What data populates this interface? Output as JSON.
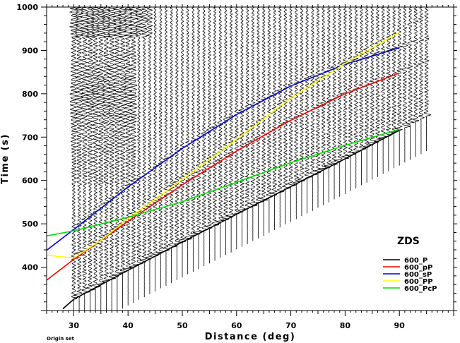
{
  "chart_data": {
    "type": "line",
    "title": "",
    "xlabel": "Distance (deg)",
    "ylabel": "Time (s)",
    "xlim": [
      25,
      100
    ],
    "ylim": [
      300,
      1000
    ],
    "xticks": [
      "30",
      "40",
      "50",
      "60",
      "70",
      "80",
      "90"
    ],
    "yticks": [
      "400",
      "500",
      "600",
      "700",
      "800",
      "900",
      "1000"
    ],
    "legend_title": "ZDS",
    "legend_position": "lower-right",
    "footnote": "Origin set",
    "grid": false,
    "traces": {
      "description_free": true,
      "distances_start": 30,
      "distances_end": 95,
      "distance_step": 1,
      "color": "#000000"
    },
    "series": [
      {
        "name": "600_P",
        "color": "#000000",
        "x": [
          28,
          30,
          40,
          50,
          60,
          70,
          80,
          90
        ],
        "y": [
          304,
          326,
          393,
          458,
          522,
          586,
          650,
          716
        ]
      },
      {
        "name": "600_pP",
        "color": "#ff0000",
        "x": [
          25,
          30,
          40,
          50,
          60,
          70,
          80,
          90
        ],
        "y": [
          370,
          418,
          506,
          590,
          668,
          739,
          800,
          848
        ]
      },
      {
        "name": "600_sP",
        "color": "#0000cc",
        "x": [
          25,
          30,
          40,
          50,
          60,
          70,
          80,
          90
        ],
        "y": [
          439,
          487,
          585,
          674,
          752,
          818,
          868,
          906
        ]
      },
      {
        "name": "600_PP",
        "color": "#ffff00",
        "x": [
          25,
          30,
          35,
          40,
          50,
          60,
          70,
          80,
          90
        ],
        "y": [
          428,
          421,
          462,
          512,
          602,
          695,
          790,
          870,
          942
        ]
      },
      {
        "name": "600_PcP",
        "color": "#00dd00",
        "x": [
          25,
          30,
          40,
          50,
          60,
          70,
          80,
          90
        ],
        "y": [
          472,
          484,
          515,
          551,
          596,
          641,
          681,
          718
        ]
      }
    ]
  }
}
